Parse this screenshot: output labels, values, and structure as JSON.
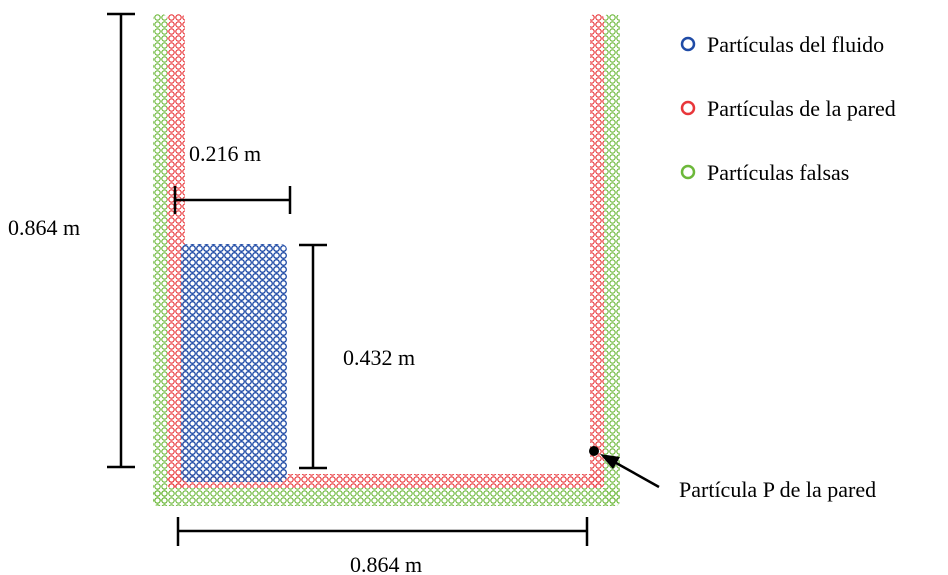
{
  "colors": {
    "fluid": "#1f4ba6",
    "wall": "#e8363a",
    "ghost": "#6cb83a",
    "ink": "#000000"
  },
  "dimensions": {
    "tank_height": "0.864 m",
    "tank_width": "0.864 m",
    "column_width": "0.216 m",
    "column_height": "0.432 m"
  },
  "annotation": {
    "particle_p": "Partícula P de la pared"
  },
  "legend": {
    "fluid": "Partículas del fluido",
    "wall": "Partículas de la pared",
    "ghost": "Partículas falsas"
  }
}
